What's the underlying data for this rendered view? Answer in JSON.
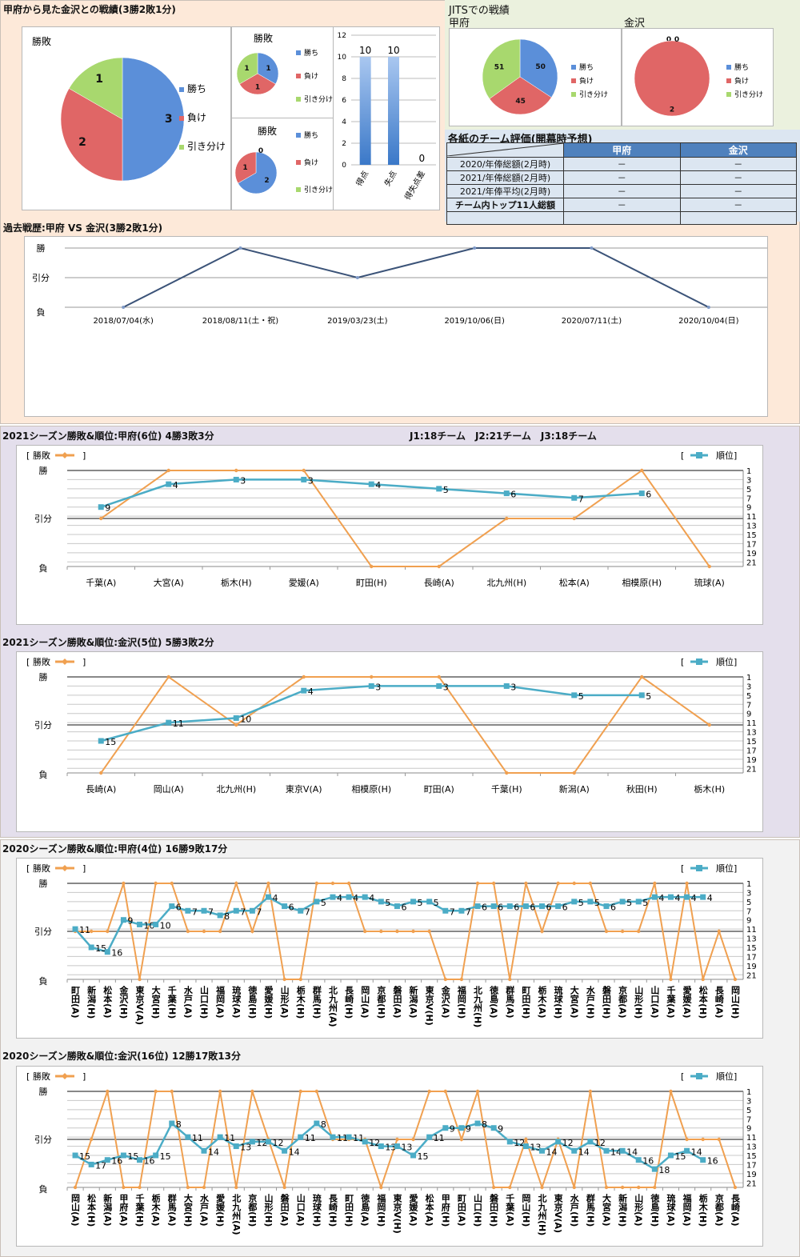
{
  "head_to_head": {
    "title": "甲府から見た金沢との戦績(3勝2敗1分)",
    "legend": [
      "勝ち",
      "負け",
      "引き分け"
    ],
    "colors": {
      "win": "#5b8fd9",
      "loss": "#e06666",
      "draw": "#a8d86e"
    }
  },
  "jit": {
    "title": "JITSでの戦績",
    "kofu_label": "甲府",
    "kanazawa_label": "金沢",
    "legend": [
      "勝ち",
      "負け",
      "引き分け"
    ]
  },
  "eval_table": {
    "title": "各紙のチーム評価(開幕時予想)",
    "headers": [
      "",
      "甲府",
      "金沢"
    ],
    "rows": [
      [
        "2020/年俸総額(2月時)",
        "－",
        "－"
      ],
      [
        "2021/年俸総額(2月時)",
        "－",
        "－"
      ],
      [
        "2021/年俸平均(2月時)",
        "－",
        "－"
      ],
      [
        "チーム内トップ11人総額",
        "－",
        "－"
      ],
      [
        "",
        "",
        ""
      ]
    ]
  },
  "history": {
    "title": "過去戦歴:甲府 VS 金沢(3勝2敗1分)"
  },
  "season2021_kofu": {
    "title": "2021シーズン勝敗&順位:甲府(6位) 4勝3敗3分",
    "note": "J1:18チーム　J2:21チーム　J3:18チーム"
  },
  "season2021_kanazawa": {
    "title": "2021シーズン勝敗&順位:金沢(5位) 5勝3敗2分"
  },
  "season2020_kofu": {
    "title": "2020シーズン勝敗&順位:甲府(4位) 16勝9敗17分"
  },
  "season2020_kanazawa": {
    "title": "2020シーズン勝敗&順位:金沢(16位) 12勝17敗13分"
  },
  "chart_data": [
    {
      "id": "pie_main",
      "type": "pie",
      "title": "勝敗",
      "labels": [
        "勝ち",
        "負け",
        "引き分け"
      ],
      "values": [
        3,
        2,
        1
      ]
    },
    {
      "id": "pie_small_1",
      "type": "pie",
      "title": "勝敗",
      "labels": [
        "勝ち",
        "負け",
        "引き分け"
      ],
      "values": [
        1,
        1,
        1
      ]
    },
    {
      "id": "pie_small_2",
      "type": "pie",
      "title": "勝敗",
      "labels": [
        "勝ち",
        "負け",
        "引き分け"
      ],
      "values": [
        2,
        1,
        0
      ],
      "data_labels": [
        "2",
        "1",
        "0"
      ]
    },
    {
      "id": "bar_goals",
      "type": "bar",
      "categories": [
        "得点",
        "失点",
        "得失点差"
      ],
      "values": [
        10,
        10,
        0
      ],
      "ylim": [
        0,
        12
      ],
      "yticks": [
        0,
        2,
        4,
        6,
        8,
        10,
        12
      ]
    },
    {
      "id": "pie_jit_kofu",
      "type": "pie",
      "title": "甲府",
      "labels": [
        "勝ち",
        "負け",
        "引き分け"
      ],
      "values": [
        50,
        45,
        51
      ]
    },
    {
      "id": "pie_jit_kanazawa",
      "type": "pie",
      "title": "金沢",
      "labels": [
        "勝ち",
        "負け",
        "引き分け"
      ],
      "values": [
        0,
        2,
        0
      ]
    },
    {
      "id": "history_line",
      "type": "line",
      "title": "過去戦歴:甲府 VS 金沢(3勝2敗1分)",
      "categories": [
        "2018/07/04(水)",
        "2018/08/11(土・祝)",
        "2019/03/23(土)",
        "2019/10/06(日)",
        "2020/07/11(土)",
        "2020/10/04(日)"
      ],
      "values": [
        0,
        2,
        1,
        2,
        2,
        0
      ],
      "yticks": [
        "負",
        "引分",
        "勝"
      ],
      "color": "#3b5378"
    },
    {
      "id": "s2021_kofu",
      "type": "line",
      "title": "2021シーズン勝敗&順位:甲府(6位) 4勝3敗3分",
      "categories": [
        "千葉(A)",
        "大宮(A)",
        "栃木(H)",
        "愛媛(A)",
        "町田(H)",
        "長崎(A)",
        "北九州(H)",
        "松本(A)",
        "相模原(H)",
        "琉球(A)"
      ],
      "series": [
        {
          "name": "勝敗",
          "axis": "left",
          "values": [
            1,
            2,
            2,
            2,
            0,
            0,
            1,
            1,
            2,
            0
          ],
          "color": "#f0a050"
        },
        {
          "name": "順位",
          "axis": "right",
          "values": [
            9,
            4,
            3,
            3,
            4,
            5,
            6,
            7,
            6,
            null
          ],
          "color": "#4bacc6"
        }
      ],
      "left_ticks": [
        "負",
        "引分",
        "勝"
      ],
      "right_ticks": [
        1,
        3,
        5,
        7,
        9,
        11,
        13,
        15,
        17,
        19,
        21
      ],
      "legend": [
        "勝敗",
        "順位"
      ]
    },
    {
      "id": "s2021_kanazawa",
      "type": "line",
      "title": "2021シーズン勝敗&順位:金沢(5位) 5勝3敗2分",
      "categories": [
        "長崎(A)",
        "岡山(A)",
        "北九州(H)",
        "東京V(A)",
        "相模原(H)",
        "町田(A)",
        "千葉(H)",
        "新潟(A)",
        "秋田(H)",
        "栃木(H)"
      ],
      "series": [
        {
          "name": "勝敗",
          "axis": "left",
          "values": [
            0,
            2,
            1,
            2,
            2,
            2,
            0,
            0,
            2,
            1
          ],
          "color": "#f0a050"
        },
        {
          "name": "順位",
          "axis": "right",
          "values": [
            15,
            11,
            10,
            4,
            3,
            3,
            3,
            5,
            5,
            null
          ],
          "color": "#4bacc6"
        }
      ],
      "left_ticks": [
        "負",
        "引分",
        "勝"
      ],
      "right_ticks": [
        1,
        3,
        5,
        7,
        9,
        11,
        13,
        15,
        17,
        19,
        21
      ],
      "legend": [
        "勝敗",
        "順位"
      ]
    },
    {
      "id": "s2020_kofu",
      "type": "line",
      "title": "2020シーズン勝敗&順位:甲府(4位) 16勝9敗17分",
      "categories": [
        "町田(A)",
        "新潟(H)",
        "松本(A)",
        "金沢(H)",
        "東京V(A)",
        "大宮(H)",
        "千葉(H)",
        "水戸(A)",
        "山口(H)",
        "福岡(A)",
        "琉球(A)",
        "徳島(H)",
        "愛媛(H)",
        "山形(A)",
        "栃木(H)",
        "群馬(H)",
        "北九州(A)",
        "長崎(H)",
        "岡山(A)",
        "京都(H)",
        "磐田(A)",
        "新潟(A)",
        "東京V(H)",
        "金沢(A)",
        "福岡(H)",
        "北九州(H)",
        "徳島(A)",
        "群馬(A)",
        "町田(H)",
        "栃木(A)",
        "琉球(H)",
        "大宮(A)",
        "水戸(H)",
        "磐田(H)",
        "京都(A)",
        "山形(H)",
        "山口(A)",
        "千葉(A)",
        "愛媛(A)",
        "松本(H)",
        "長崎(A)",
        "岡山(H)"
      ],
      "series": [
        {
          "name": "勝敗",
          "axis": "left",
          "values": [
            1,
            1,
            1,
            2,
            0,
            2,
            2,
            1,
            1,
            1,
            2,
            1,
            2,
            0,
            0,
            2,
            2,
            2,
            1,
            1,
            1,
            1,
            1,
            0,
            0,
            2,
            2,
            0,
            2,
            1,
            2,
            2,
            2,
            1,
            1,
            1,
            2,
            0,
            2,
            0,
            1,
            0
          ],
          "color": "#f0a050"
        },
        {
          "name": "順位",
          "axis": "right",
          "values": [
            11,
            15,
            16,
            9,
            10,
            10,
            6,
            7,
            7,
            8,
            7,
            7,
            4,
            6,
            7,
            5,
            4,
            4,
            4,
            5,
            6,
            5,
            5,
            7,
            7,
            6,
            6,
            6,
            6,
            6,
            6,
            5,
            5,
            6,
            5,
            5,
            4,
            4,
            4,
            4,
            null,
            null
          ],
          "color": "#4bacc6"
        }
      ],
      "left_ticks": [
        "負",
        "引分",
        "勝"
      ],
      "right_ticks": [
        1,
        3,
        5,
        7,
        9,
        11,
        13,
        15,
        17,
        19,
        21
      ],
      "legend": [
        "勝敗",
        "順位"
      ]
    },
    {
      "id": "s2020_kanazawa",
      "type": "line",
      "title": "2020シーズン勝敗&順位:金沢(16位) 12勝17敗13分",
      "categories": [
        "岡山(A)",
        "松本(H)",
        "新潟(A)",
        "甲府(A)",
        "千葉(H)",
        "栃木(A)",
        "群馬(A)",
        "大宮(H)",
        "水戸(A)",
        "愛媛(H)",
        "北九州(A)",
        "京都(H)",
        "山形(H)",
        "磐田(A)",
        "山口(A)",
        "琉球(H)",
        "長崎(H)",
        "町田(H)",
        "徳島(A)",
        "福岡(H)",
        "東京V(H)",
        "愛媛(A)",
        "松本(A)",
        "甲府(H)",
        "町田(A)",
        "山口(H)",
        "磐田(H)",
        "千葉(A)",
        "岡山(H)",
        "北九州(H)",
        "東京V(A)",
        "水戸(H)",
        "群馬(H)",
        "大宮(A)",
        "新潟(H)",
        "山形(A)",
        "徳島(H)",
        "琉球(A)",
        "福岡(A)",
        "栃木(H)",
        "京都(A)",
        "長崎(A)"
      ],
      "series": [
        {
          "name": "勝敗",
          "axis": "left",
          "values": [
            0,
            1,
            2,
            0,
            0,
            2,
            2,
            0,
            0,
            2,
            0,
            2,
            1,
            0,
            2,
            2,
            1,
            1,
            1,
            0,
            1,
            1,
            2,
            2,
            1,
            2,
            0,
            0,
            1,
            0,
            1,
            0,
            2,
            0,
            0,
            0,
            0,
            2,
            1,
            1,
            1,
            0
          ],
          "color": "#f0a050"
        },
        {
          "name": "順位",
          "axis": "right",
          "values": [
            15,
            17,
            16,
            15,
            16,
            15,
            8,
            11,
            14,
            11,
            13,
            12,
            12,
            14,
            11,
            8,
            11,
            11,
            12,
            13,
            13,
            15,
            11,
            9,
            9,
            8,
            9,
            12,
            13,
            14,
            12,
            14,
            12,
            14,
            14,
            16,
            18,
            15,
            14,
            16,
            null,
            null
          ],
          "color": "#4bacc6"
        }
      ],
      "left_ticks": [
        "負",
        "引分",
        "勝"
      ],
      "right_ticks": [
        1,
        3,
        5,
        7,
        9,
        11,
        13,
        15,
        17,
        19,
        21
      ],
      "legend": [
        "勝敗",
        "順位"
      ]
    }
  ]
}
